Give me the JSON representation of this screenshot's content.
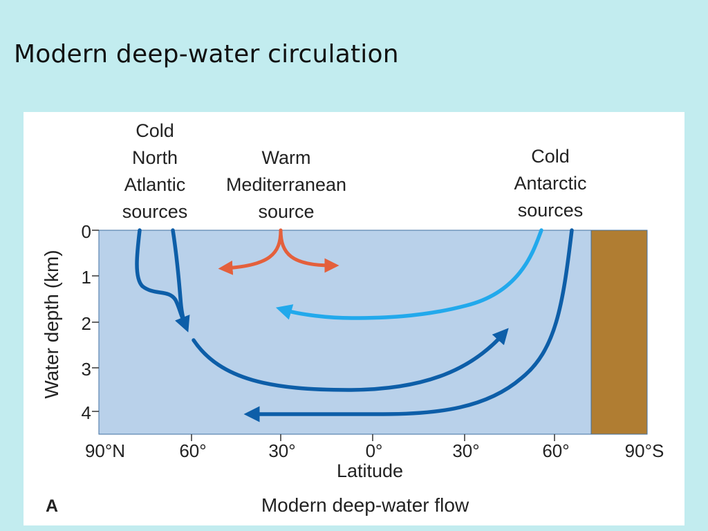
{
  "slide": {
    "title": "Modern deep-water circulation"
  },
  "figure": {
    "panel_letter": "A",
    "caption": "Modern deep-water flow",
    "y_axis_label": "Water depth (km)",
    "x_axis_label": "Latitude",
    "source_labels": {
      "north_atlantic": [
        "Cold",
        "North",
        "Atlantic",
        "sources"
      ],
      "mediterranean": [
        "Warm",
        "Mediterranean",
        "source"
      ],
      "antarctic": [
        "Cold",
        "Antarctic",
        "sources"
      ]
    },
    "colors": {
      "ocean": "#b9d1ea",
      "land": "#b07d32",
      "deep_current": "#0d5ea8",
      "intermediate_current": "#22a9ec",
      "warm_current": "#e4603c",
      "background": "#c2ecef"
    }
  },
  "chart_data": {
    "type": "diagram",
    "x_ticks": [
      "90°N",
      "60°",
      "30°",
      "0°",
      "30°",
      "60°",
      "90°S"
    ],
    "y_ticks": [
      "0",
      "1",
      "2",
      "3",
      "4"
    ],
    "xlabel": "Latitude",
    "ylabel": "Water depth (km)",
    "ylim": [
      0,
      4.5
    ]
  }
}
